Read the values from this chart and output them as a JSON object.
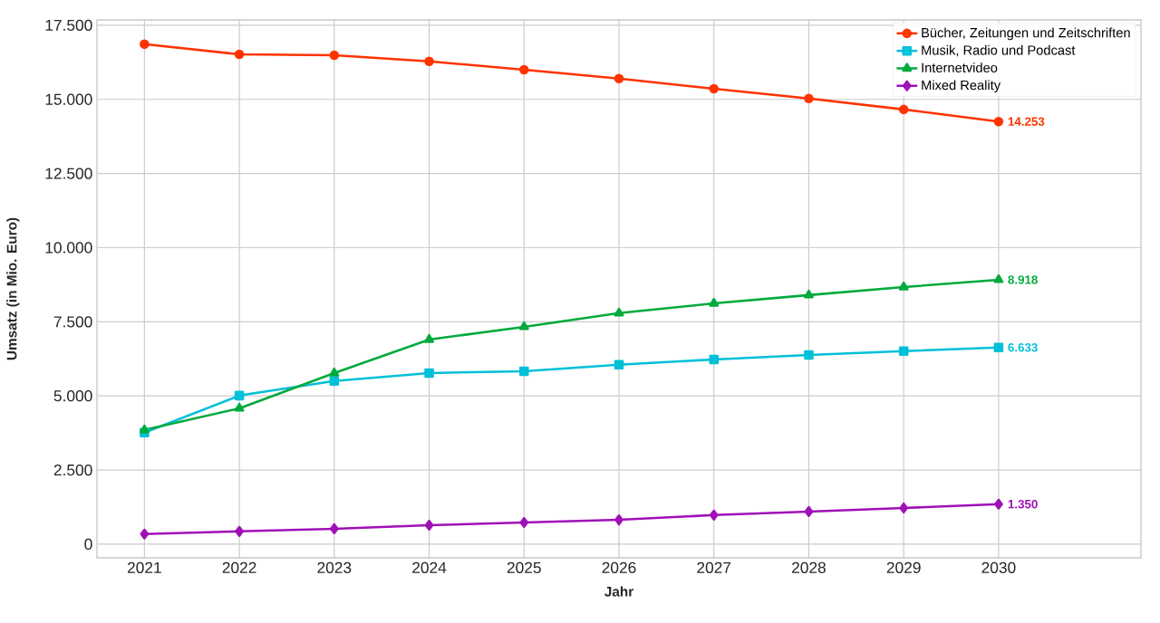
{
  "chart_data": {
    "type": "line",
    "xlabel": "Jahr",
    "ylabel": "Umsatz (in Mio. Euro)",
    "x": [
      2021,
      2022,
      2023,
      2024,
      2025,
      2026,
      2027,
      2028,
      2029,
      2030
    ],
    "xlim": [
      2020.5,
      2031.5
    ],
    "xticks": [
      2021,
      2022,
      2023,
      2024,
      2025,
      2026,
      2027,
      2028,
      2029,
      2030
    ],
    "ylim": [
      -460,
      17680
    ],
    "yticks": [
      {
        "value": 0,
        "label": "0"
      },
      {
        "value": 2500,
        "label": "2.500"
      },
      {
        "value": 5000,
        "label": "5.000"
      },
      {
        "value": 7500,
        "label": "7.500"
      },
      {
        "value": 10000,
        "label": "10.000"
      },
      {
        "value": 12500,
        "label": "12.500"
      },
      {
        "value": 15000,
        "label": "15.000"
      },
      {
        "value": 17500,
        "label": "17.500"
      }
    ],
    "grid": true,
    "legend": "top right",
    "line_style": "solid",
    "series": [
      {
        "name": "Bücher, Zeitungen und Zeitschriften",
        "color": "#ff3300",
        "marker": "circle",
        "values": [
          16860,
          16520,
          16490,
          16280,
          16000,
          15700,
          15360,
          15030,
          14660,
          14253
        ],
        "value_labels": [
          null,
          null,
          null,
          null,
          null,
          null,
          null,
          null,
          null,
          "14.253"
        ]
      },
      {
        "name": "Musik, Radio und Podcast",
        "color": "#00c0d8",
        "marker": "square",
        "values": [
          3760,
          5010,
          5500,
          5770,
          5830,
          6050,
          6230,
          6380,
          6510,
          6633
        ],
        "value_labels": [
          null,
          null,
          null,
          null,
          null,
          null,
          null,
          null,
          null,
          "6.633"
        ]
      },
      {
        "name": "Internetvideo",
        "color": "#00aa3c",
        "marker": "triangle",
        "values": [
          3850,
          4580,
          5770,
          6900,
          7330,
          7790,
          8120,
          8400,
          8670,
          8918
        ],
        "value_labels": [
          null,
          null,
          null,
          null,
          null,
          null,
          null,
          null,
          null,
          "8.918"
        ]
      },
      {
        "name": "Mixed Reality",
        "color": "#a010b8",
        "marker": "diamond",
        "values": [
          340,
          430,
          520,
          640,
          730,
          820,
          980,
          1100,
          1220,
          1350
        ],
        "value_labels": [
          null,
          null,
          null,
          null,
          null,
          null,
          null,
          null,
          null,
          "1.350"
        ]
      }
    ]
  }
}
